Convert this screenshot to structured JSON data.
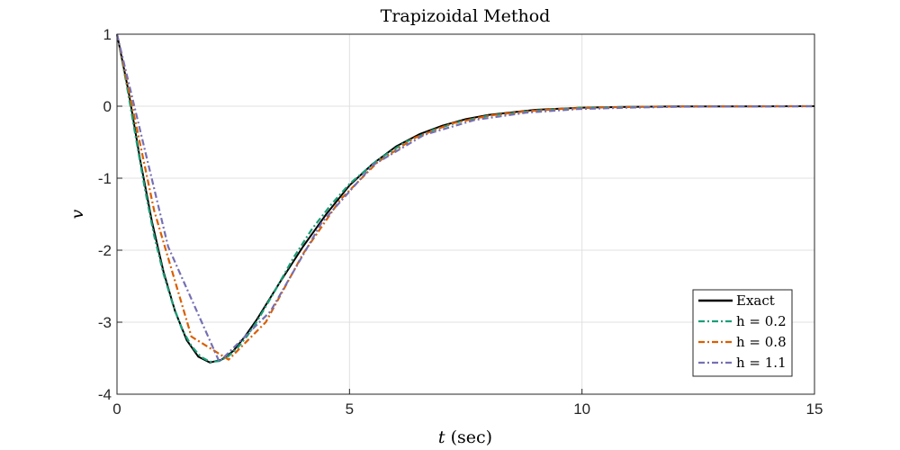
{
  "chart_data": {
    "type": "line",
    "title": "Trapizoidal Method",
    "xlabel_italic": "t",
    "xlabel_rest": " (sec)",
    "ylabel": "v",
    "xlim": [
      0,
      15
    ],
    "ylim": [
      -4,
      1
    ],
    "xticks": [
      0,
      5,
      10,
      15
    ],
    "xtick_labels": [
      "0",
      "5",
      "10",
      "15"
    ],
    "yticks": [
      1,
      0,
      -1,
      -2,
      -3,
      -4
    ],
    "ytick_labels": [
      "1",
      "0",
      "-1",
      "-2",
      "-3",
      "-4"
    ],
    "grid": true,
    "legend_position": "bottom-right",
    "series": [
      {
        "name": "Exact",
        "color": "#000000",
        "style": "solid",
        "x": [
          0,
          0.25,
          0.5,
          0.75,
          1.0,
          1.25,
          1.5,
          1.75,
          2.0,
          2.25,
          2.5,
          2.75,
          3.0,
          3.5,
          4.0,
          4.5,
          5.0,
          5.5,
          6.0,
          6.5,
          7.0,
          7.5,
          8.0,
          9.0,
          10.0,
          11.0,
          12.0,
          13.0,
          14.0,
          15.0
        ],
        "y": [
          1.0,
          0.2,
          -0.75,
          -1.6,
          -2.3,
          -2.85,
          -3.25,
          -3.48,
          -3.56,
          -3.52,
          -3.4,
          -3.2,
          -2.97,
          -2.45,
          -1.95,
          -1.5,
          -1.1,
          -0.8,
          -0.56,
          -0.39,
          -0.27,
          -0.18,
          -0.12,
          -0.05,
          -0.02,
          -0.01,
          -0.004,
          -0.002,
          -0.001,
          0.0
        ]
      },
      {
        "name": "h = 0.2",
        "color": "#1b9e77",
        "style": "dashdot",
        "x": [
          0,
          0.2,
          0.4,
          0.6,
          0.8,
          1.0,
          1.2,
          1.4,
          1.6,
          1.8,
          2.0,
          2.2,
          2.4,
          2.6,
          2.8,
          3.0,
          3.4,
          3.8,
          4.2,
          4.6,
          5.0,
          5.6,
          6.2,
          6.8,
          7.4,
          8.0,
          9.0,
          10.0,
          11.0,
          12.0,
          13.0,
          14.0,
          15.0
        ],
        "y": [
          1.0,
          0.33,
          -0.42,
          -1.15,
          -1.8,
          -2.33,
          -2.75,
          -3.1,
          -3.33,
          -3.48,
          -3.55,
          -3.54,
          -3.47,
          -3.35,
          -3.19,
          -3.0,
          -2.56,
          -2.1,
          -1.7,
          -1.37,
          -1.08,
          -0.75,
          -0.5,
          -0.33,
          -0.21,
          -0.13,
          -0.06,
          -0.02,
          -0.01,
          -0.004,
          -0.002,
          -0.001,
          0.0
        ]
      },
      {
        "name": "h = 0.8",
        "color": "#d95f02",
        "style": "dashdot",
        "x": [
          0,
          0.8,
          1.6,
          2.4,
          3.2,
          4.0,
          4.8,
          5.6,
          6.4,
          7.2,
          8.0,
          8.8,
          9.6,
          10.4,
          11.2,
          12.0,
          12.8,
          13.6,
          14.4,
          15.0
        ],
        "y": [
          1.0,
          -1.45,
          -3.2,
          -3.52,
          -3.0,
          -2.05,
          -1.3,
          -0.78,
          -0.44,
          -0.24,
          -0.13,
          -0.07,
          -0.035,
          -0.018,
          -0.009,
          -0.004,
          -0.002,
          -0.001,
          0.0,
          0.0
        ]
      },
      {
        "name": "h = 1.1",
        "color": "#7570b3",
        "style": "dashdot",
        "x": [
          0,
          1.1,
          2.2,
          3.3,
          4.4,
          5.5,
          6.6,
          7.7,
          8.8,
          9.9,
          11.0,
          12.1,
          13.2,
          14.3,
          15.0
        ],
        "y": [
          1.0,
          -1.95,
          -3.55,
          -2.85,
          -1.62,
          -0.82,
          -0.4,
          -0.19,
          -0.09,
          -0.04,
          -0.02,
          -0.008,
          -0.004,
          -0.002,
          0.0
        ]
      }
    ]
  }
}
